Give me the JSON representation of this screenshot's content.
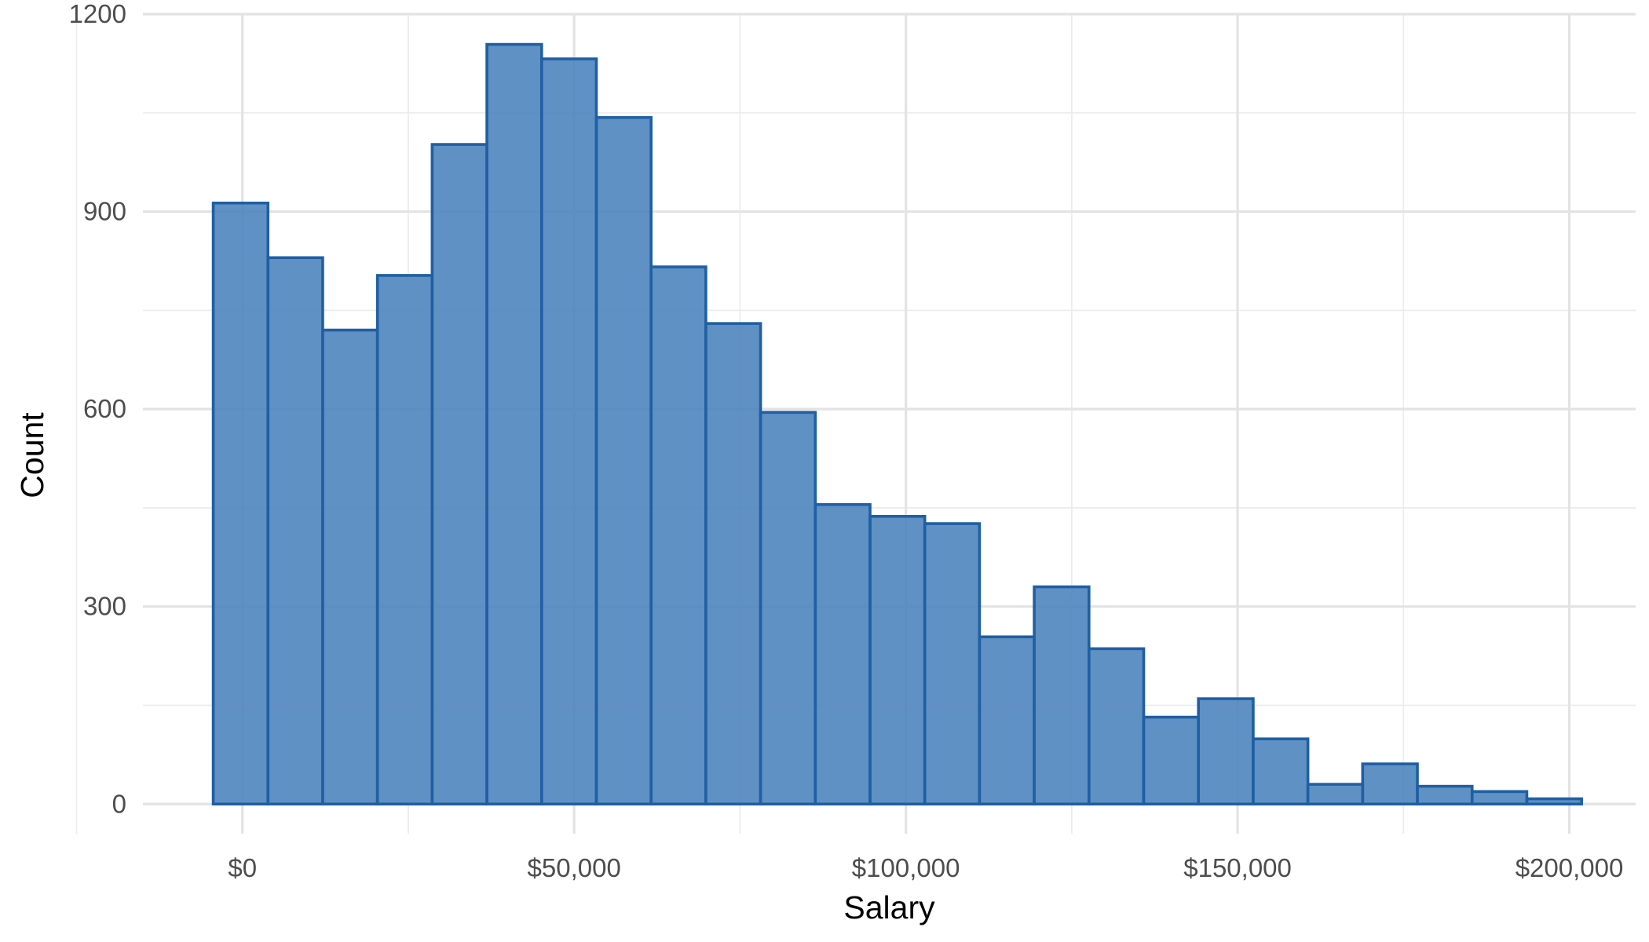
{
  "chart_data": {
    "type": "bar",
    "subtype": "histogram",
    "title": "",
    "xlabel": "Salary",
    "ylabel": "Count",
    "xlim": [
      -15000,
      210000
    ],
    "ylim": [
      -45,
      1200
    ],
    "x_ticks": [
      0,
      50000,
      100000,
      150000,
      200000
    ],
    "x_tick_labels": [
      "$0",
      "$50,000",
      "$100,000",
      "$150,000",
      "$200,000"
    ],
    "y_ticks": [
      0,
      300,
      600,
      900,
      1200
    ],
    "y_tick_labels": [
      "0",
      "300",
      "600",
      "900",
      "1200"
    ],
    "bin_width": 8250,
    "bin_starts": [
      -4400,
      3850,
      12100,
      20350,
      28600,
      36850,
      45100,
      53350,
      61600,
      69850,
      78100,
      86350,
      94600,
      102850,
      111100,
      119350,
      127600,
      135850,
      144100,
      152350,
      160600,
      168850,
      177100,
      185350,
      193600
    ],
    "values": [
      913,
      830,
      720,
      803,
      1002,
      1154,
      1132,
      1043,
      816,
      730,
      595,
      455,
      437,
      426,
      254,
      330,
      236,
      132,
      160,
      99,
      30,
      61,
      27,
      19,
      8
    ],
    "grid": true,
    "colors": {
      "bar_fill": "#4a82bc",
      "bar_outline": "#1f5fa3",
      "grid": "#e3e3e3"
    }
  }
}
